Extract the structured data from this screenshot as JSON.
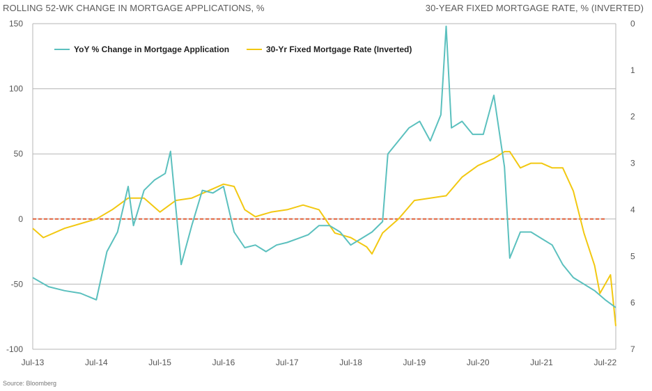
{
  "header": {
    "left_title": "ROLLING 52-WK CHANGE IN MORTGAGE APPLICATIONS, %",
    "right_title": "30-YEAR FIXED MORTGAGE RATE, % (INVERTED)"
  },
  "source": "Source: Bloomberg",
  "colors": {
    "applications": "#5bc0be",
    "rate": "#f2c811",
    "zero_line": "#e0603a",
    "grid": "#b5b5b5"
  },
  "chart_data": {
    "type": "line",
    "x_tick_labels": [
      "Jul-13",
      "Jul-14",
      "Jul-15",
      "Jul-16",
      "Jul-17",
      "Jul-18",
      "Jul-19",
      "Jul-20",
      "Jul-21",
      "Jul-22"
    ],
    "xlim": [
      "2013-07",
      "2022-09"
    ],
    "y_left": {
      "ticks": [
        150,
        100,
        50,
        0,
        -50,
        -100
      ],
      "lim": [
        -100,
        150
      ]
    },
    "y_right": {
      "ticks": [
        0,
        1,
        2,
        3,
        4,
        5,
        6,
        7
      ],
      "lim": [
        0,
        7
      ],
      "inverted": true
    },
    "reference_line": {
      "axis": "left",
      "value": 0,
      "style": "dashed"
    },
    "legend": {
      "placement": "top-left"
    },
    "series": [
      {
        "name": "YoY % Change in Mortgage Application",
        "axis": "left",
        "color": "#5bc0be",
        "x": [
          "2013-07",
          "2013-10",
          "2014-01",
          "2014-04",
          "2014-07",
          "2014-09",
          "2014-11",
          "2015-01",
          "2015-02",
          "2015-04",
          "2015-06",
          "2015-08",
          "2015-09",
          "2015-11",
          "2016-01",
          "2016-03",
          "2016-05",
          "2016-07",
          "2016-09",
          "2016-11",
          "2017-01",
          "2017-03",
          "2017-05",
          "2017-07",
          "2017-09",
          "2017-11",
          "2018-01",
          "2018-03",
          "2018-05",
          "2018-07",
          "2018-09",
          "2018-11",
          "2019-01",
          "2019-02",
          "2019-04",
          "2019-06",
          "2019-08",
          "2019-10",
          "2019-12",
          "2020-01",
          "2020-02",
          "2020-04",
          "2020-06",
          "2020-08",
          "2020-10",
          "2020-12",
          "2021-01",
          "2021-03",
          "2021-05",
          "2021-07",
          "2021-09",
          "2021-11",
          "2022-01",
          "2022-03",
          "2022-05",
          "2022-07",
          "2022-09"
        ],
        "values": [
          -45,
          -52,
          -55,
          -57,
          -62,
          -25,
          -10,
          25,
          -5,
          22,
          30,
          35,
          52,
          -35,
          -5,
          22,
          20,
          25,
          -10,
          -22,
          -20,
          -25,
          -20,
          -18,
          -15,
          -12,
          -5,
          -5,
          -10,
          -20,
          -15,
          -10,
          -2,
          50,
          60,
          70,
          75,
          60,
          80,
          148,
          70,
          75,
          65,
          65,
          95,
          40,
          -30,
          -10,
          -10,
          -15,
          -20,
          -35,
          -45,
          -50,
          -55,
          -62,
          -68
        ]
      },
      {
        "name": "30-Yr Fixed Mortgage Rate (Inverted)",
        "axis": "right",
        "color": "#f2c811",
        "x": [
          "2013-07",
          "2013-09",
          "2014-01",
          "2014-04",
          "2014-07",
          "2014-10",
          "2015-01",
          "2015-04",
          "2015-07",
          "2015-10",
          "2016-01",
          "2016-04",
          "2016-07",
          "2016-09",
          "2016-11",
          "2017-01",
          "2017-04",
          "2017-07",
          "2017-10",
          "2018-01",
          "2018-04",
          "2018-07",
          "2018-10",
          "2018-11",
          "2019-01",
          "2019-04",
          "2019-07",
          "2019-10",
          "2020-01",
          "2020-04",
          "2020-07",
          "2020-10",
          "2020-12",
          "2021-01",
          "2021-03",
          "2021-05",
          "2021-07",
          "2021-09",
          "2021-11",
          "2022-01",
          "2022-03",
          "2022-05",
          "2022-06",
          "2022-08",
          "2022-09"
        ],
        "values": [
          4.4,
          4.6,
          4.4,
          4.3,
          4.2,
          4.0,
          3.75,
          3.75,
          4.05,
          3.8,
          3.75,
          3.6,
          3.45,
          3.5,
          4.0,
          4.15,
          4.05,
          4.0,
          3.9,
          4.0,
          4.5,
          4.6,
          4.8,
          4.95,
          4.5,
          4.2,
          3.8,
          3.75,
          3.7,
          3.3,
          3.05,
          2.9,
          2.75,
          2.75,
          3.1,
          3.0,
          3.0,
          3.1,
          3.1,
          3.6,
          4.5,
          5.2,
          5.8,
          5.4,
          6.5
        ]
      }
    ]
  }
}
